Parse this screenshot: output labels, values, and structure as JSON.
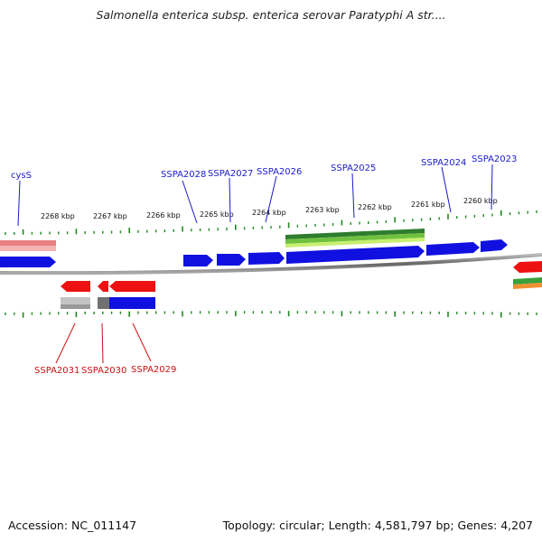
{
  "title": "Salmonella enterica subsp. enterica serovar Paratyphi A str....",
  "footer": {
    "accession": "Accession: NC_011147",
    "summary": "Topology: circular; Length: 4,581,797 bp; Genes: 4,207"
  },
  "colors": {
    "plus_gene": "#1010e0",
    "minus_gene": "#ee1111",
    "tick": "#1e8a1e",
    "backbone": "#777777",
    "plus_label": "#1a1acc",
    "minus_label": "#cc1111"
  },
  "scale_labels": [
    "2268 kbp",
    "2267 kbp",
    "2266 kbp",
    "2265 kbp",
    "2264 kbp",
    "2263 kbp",
    "2262 kbp",
    "2261 kbp",
    "2260 kbp"
  ],
  "genes_plus": [
    "cysS",
    "SSPA2028",
    "SSPA2027",
    "SSPA2026",
    "SSPA2025",
    "SSPA2024",
    "SSPA2023"
  ],
  "genes_minus": [
    "SSPA2031",
    "SSPA2030",
    "SSPA2029"
  ]
}
